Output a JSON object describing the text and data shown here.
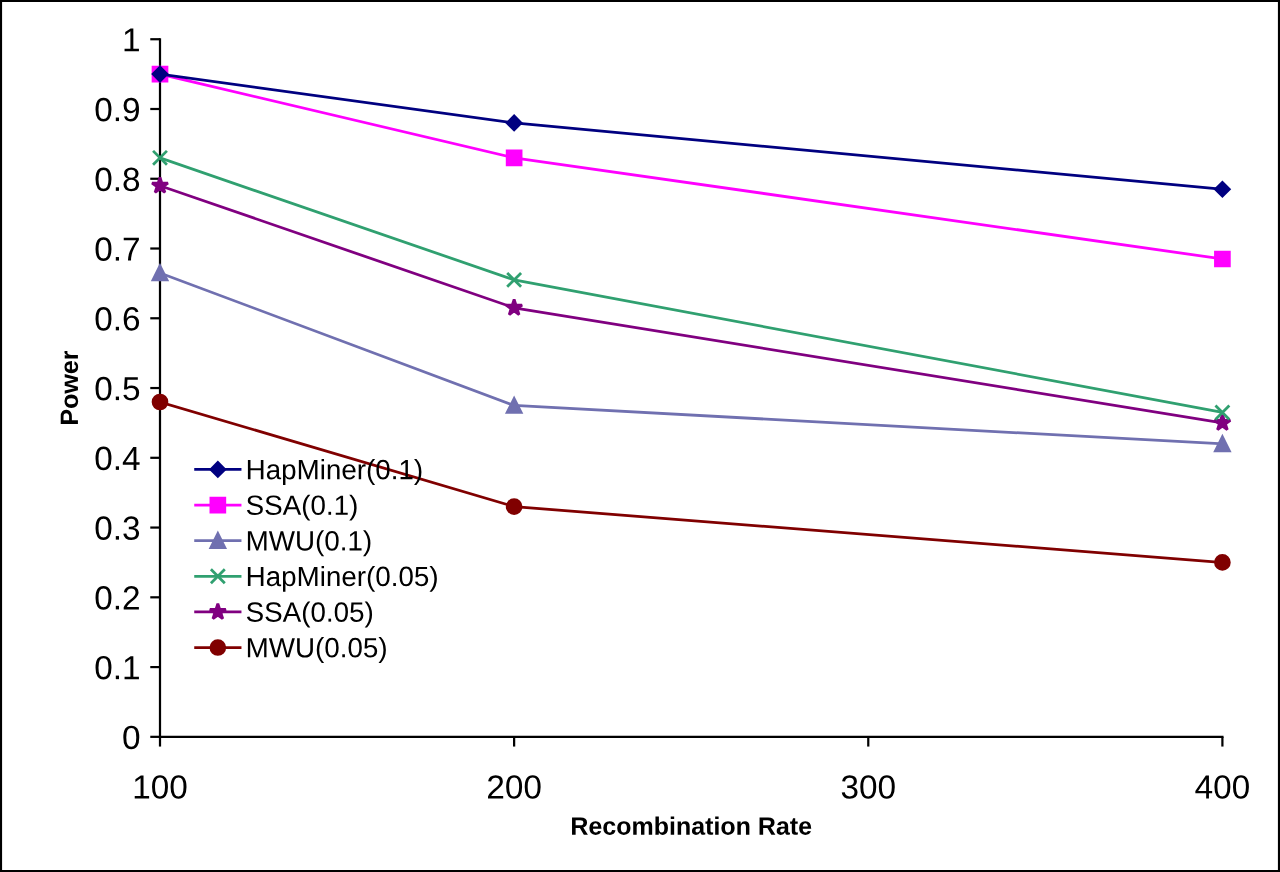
{
  "chart_data": {
    "type": "line",
    "xlabel": "Recombination Rate",
    "ylabel": "Power",
    "x": [
      100,
      200,
      400
    ],
    "xlim": [
      100,
      400
    ],
    "xticks": [
      100,
      200,
      300,
      400
    ],
    "ylim": [
      0,
      1
    ],
    "yticks": [
      0,
      0.1,
      0.2,
      0.3,
      0.4,
      0.5,
      0.6,
      0.7,
      0.8,
      0.9,
      1
    ],
    "grid": false,
    "legend": "bottom left",
    "line_style": "solid",
    "series": [
      {
        "name": "HapMiner(0.1)",
        "color": "#000080",
        "marker": "diamond",
        "values": [
          0.95,
          0.88,
          0.785
        ]
      },
      {
        "name": "SSA(0.1)",
        "color": "#ff00ff",
        "marker": "square",
        "values": [
          0.95,
          0.83,
          0.685
        ]
      },
      {
        "name": "MWU(0.1)",
        "color": "#7070b0",
        "marker": "triangle",
        "values": [
          0.665,
          0.475,
          0.42
        ]
      },
      {
        "name": "HapMiner(0.05)",
        "color": "#30a070",
        "marker": "cross",
        "values": [
          0.83,
          0.655,
          0.465
        ]
      },
      {
        "name": "SSA(0.05)",
        "color": "#800080",
        "marker": "star",
        "values": [
          0.79,
          0.615,
          0.45
        ]
      },
      {
        "name": "MWU(0.05)",
        "color": "#800000",
        "marker": "circle",
        "values": [
          0.48,
          0.33,
          0.25
        ]
      }
    ]
  }
}
